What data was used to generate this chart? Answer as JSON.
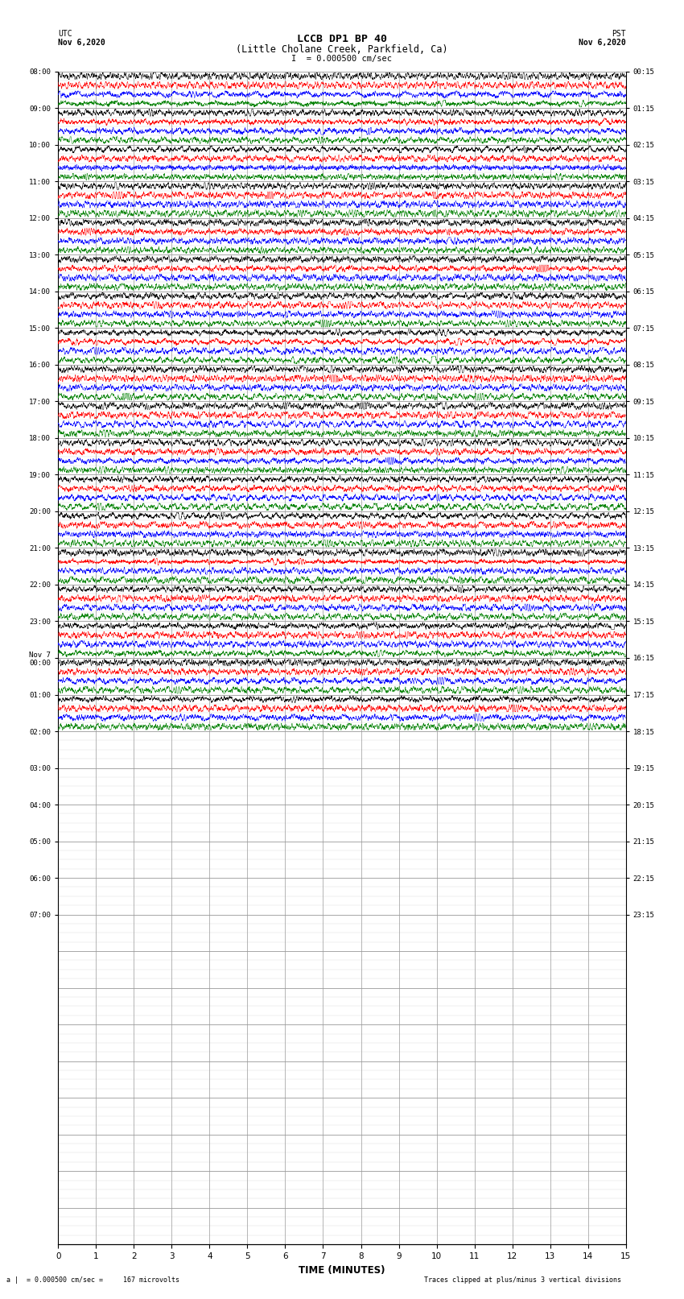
{
  "title_line1": "LCCB DP1 BP 40",
  "title_line2": "(Little Cholane Creek, Parkfield, Ca)",
  "left_header_line1": "UTC",
  "left_header_line2": "Nov 6,2020",
  "right_header_line1": "PST",
  "right_header_line2": "Nov 6,2020",
  "scale_text": "I  = 0.000500 cm/sec",
  "bottom_left_text": "a |  = 0.000500 cm/sec =     167 microvolts",
  "bottom_right_text": "Traces clipped at plus/minus 3 vertical divisions",
  "xlabel": "TIME (MINUTES)",
  "xlim": [
    0,
    15
  ],
  "xticks": [
    0,
    1,
    2,
    3,
    4,
    5,
    6,
    7,
    8,
    9,
    10,
    11,
    12,
    13,
    14,
    15
  ],
  "trace_colors": [
    "black",
    "red",
    "blue",
    "green"
  ],
  "n_rows": 32,
  "left_times_utc": [
    "08:00",
    "09:00",
    "10:00",
    "11:00",
    "12:00",
    "13:00",
    "14:00",
    "15:00",
    "16:00",
    "17:00",
    "18:00",
    "19:00",
    "20:00",
    "21:00",
    "22:00",
    "23:00",
    "Nov 7\n00:00",
    "01:00",
    "02:00",
    "03:00",
    "04:00",
    "05:00",
    "06:00",
    "07:00"
  ],
  "right_times_pst": [
    "00:15",
    "01:15",
    "02:15",
    "03:15",
    "04:15",
    "05:15",
    "06:15",
    "07:15",
    "08:15",
    "09:15",
    "10:15",
    "11:15",
    "12:15",
    "13:15",
    "14:15",
    "15:15",
    "16:15",
    "17:15",
    "18:15",
    "19:15",
    "20:15",
    "21:15",
    "22:15",
    "23:15"
  ],
  "active_rows": 18,
  "background_color": "white",
  "grid_color": "#999999",
  "trace_amplitude": 0.38
}
